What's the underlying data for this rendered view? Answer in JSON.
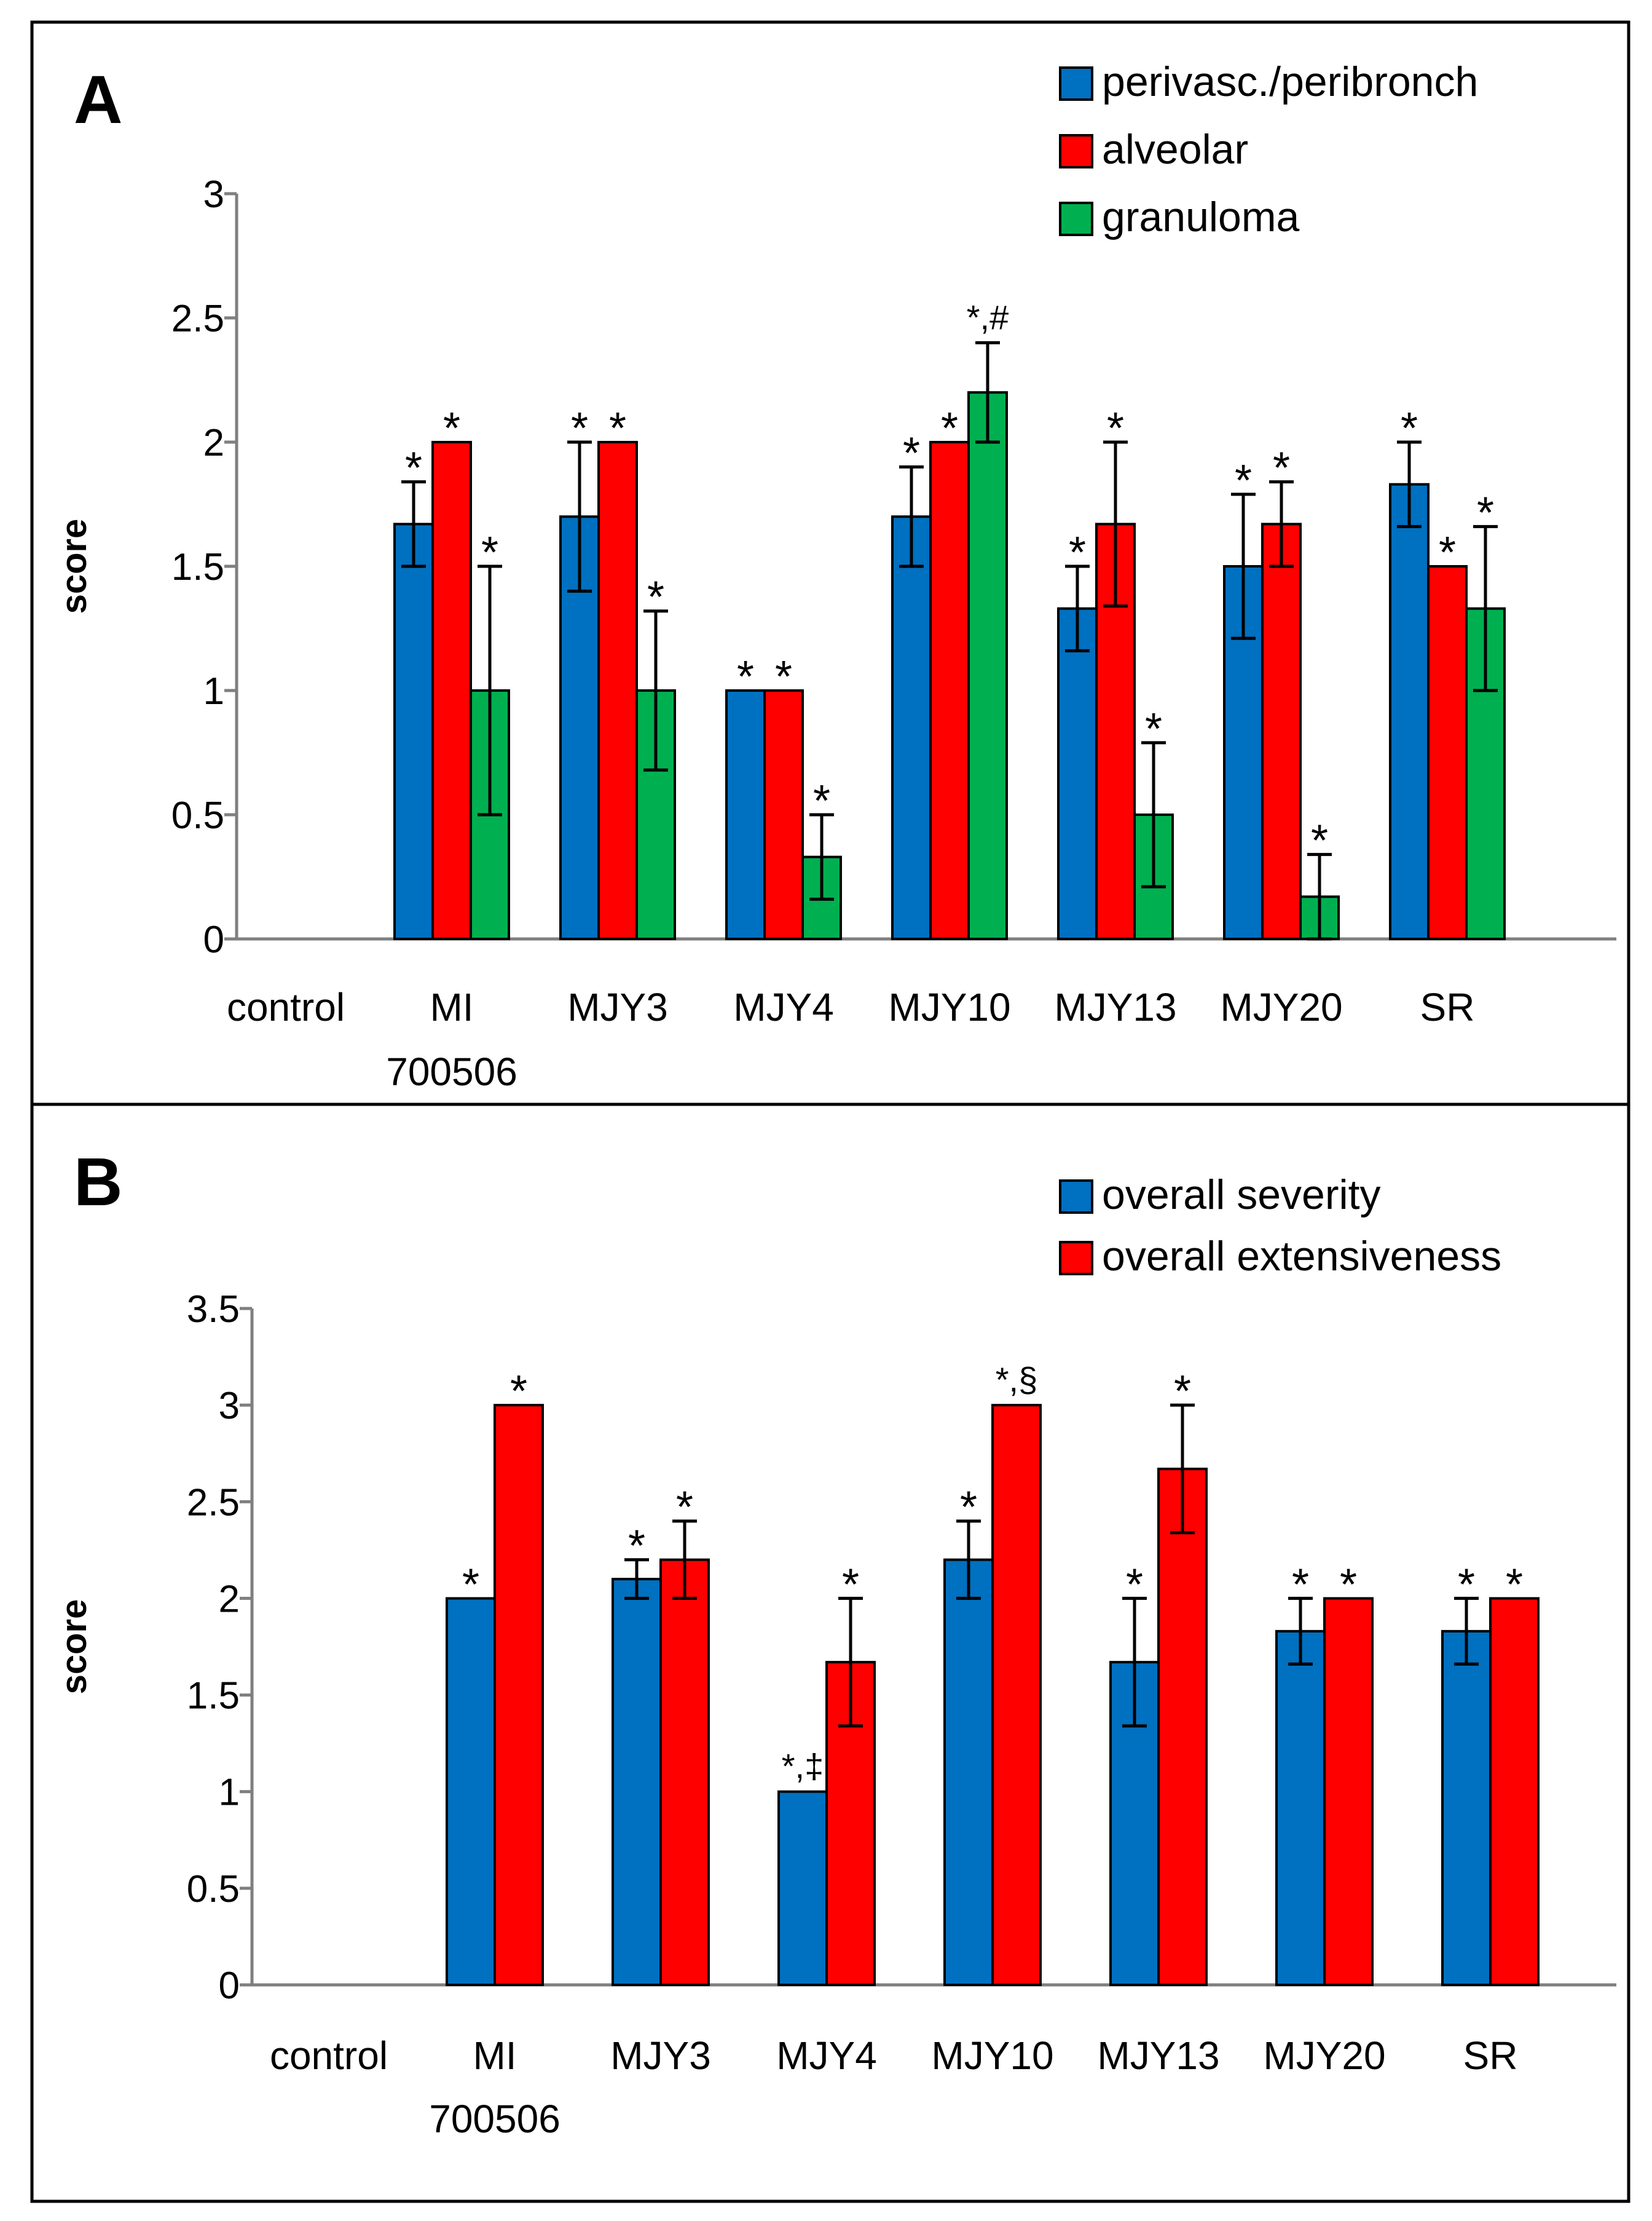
{
  "chart_data": [
    {
      "type": "bar",
      "panel_label": "A",
      "ylabel": "score",
      "ylim": [
        0,
        3
      ],
      "yticks": [
        "0",
        "0.5",
        "1",
        "1.5",
        "2",
        "2.5",
        "3"
      ],
      "ytick_values": [
        0,
        0.5,
        1,
        1.5,
        2,
        2.5,
        3
      ],
      "categories": [
        "control",
        "MI\n700506",
        "MJY3",
        "MJY4",
        "MJY10",
        "MJY13",
        "MJY20",
        "SR"
      ],
      "legend_position": "top-right",
      "series": [
        {
          "name": "perivasc./peribronch",
          "color": "#0070C0",
          "values": [
            0,
            1.67,
            1.7,
            1.0,
            1.7,
            1.33,
            1.5,
            1.83
          ],
          "errors": [
            0,
            0.17,
            0.3,
            0,
            0.2,
            0.17,
            0.29,
            0.17
          ],
          "annotations": [
            "",
            "*",
            "*",
            "*",
            "*",
            "*",
            "*",
            "*"
          ]
        },
        {
          "name": "alveolar",
          "color": "#FF0000",
          "values": [
            0,
            2.0,
            2.0,
            1.0,
            2.0,
            1.67,
            1.67,
            1.5
          ],
          "errors": [
            0,
            0,
            0,
            0,
            0,
            0.33,
            0.17,
            0
          ],
          "annotations": [
            "",
            "*",
            "*",
            "*",
            "*",
            "*",
            "*",
            "*"
          ]
        },
        {
          "name": "granuloma",
          "color": "#00B050",
          "values": [
            0,
            1.0,
            1.0,
            0.33,
            2.2,
            0.5,
            0.17,
            1.33
          ],
          "errors": [
            0,
            0.5,
            0.32,
            0.17,
            0.2,
            0.29,
            0.17,
            0.33
          ],
          "annotations": [
            "",
            "*",
            "*",
            "*",
            "*,#",
            "*",
            "*",
            "*"
          ]
        }
      ]
    },
    {
      "type": "bar",
      "panel_label": "B",
      "ylabel": "score",
      "ylim": [
        0,
        3.5
      ],
      "yticks": [
        "0",
        "0.5",
        "1",
        "1.5",
        "2",
        "2.5",
        "3",
        "3.5"
      ],
      "ytick_values": [
        0,
        0.5,
        1,
        1.5,
        2,
        2.5,
        3,
        3.5
      ],
      "categories": [
        "control",
        "MI\n700506",
        "MJY3",
        "MJY4",
        "MJY10",
        "MJY13",
        "MJY20",
        "SR"
      ],
      "legend_position": "top-right",
      "series": [
        {
          "name": "overall severity",
          "color": "#0070C0",
          "values": [
            0,
            2.0,
            2.1,
            1.0,
            2.2,
            1.67,
            1.83,
            1.83
          ],
          "errors": [
            0,
            0,
            0.1,
            0,
            0.2,
            0.33,
            0.17,
            0.17
          ],
          "annotations": [
            "",
            "*",
            "*",
            "*,‡",
            "*",
            "*",
            "*",
            "*"
          ]
        },
        {
          "name": "overall extensiveness",
          "color": "#FF0000",
          "values": [
            0,
            3.0,
            2.2,
            1.67,
            3.0,
            2.67,
            2.0,
            2.0
          ],
          "errors": [
            0,
            0,
            0.2,
            0.33,
            0,
            0.33,
            0,
            0
          ],
          "annotations": [
            "",
            "*",
            "*",
            "*",
            "*,§",
            "*",
            "*",
            "*"
          ]
        }
      ]
    }
  ]
}
